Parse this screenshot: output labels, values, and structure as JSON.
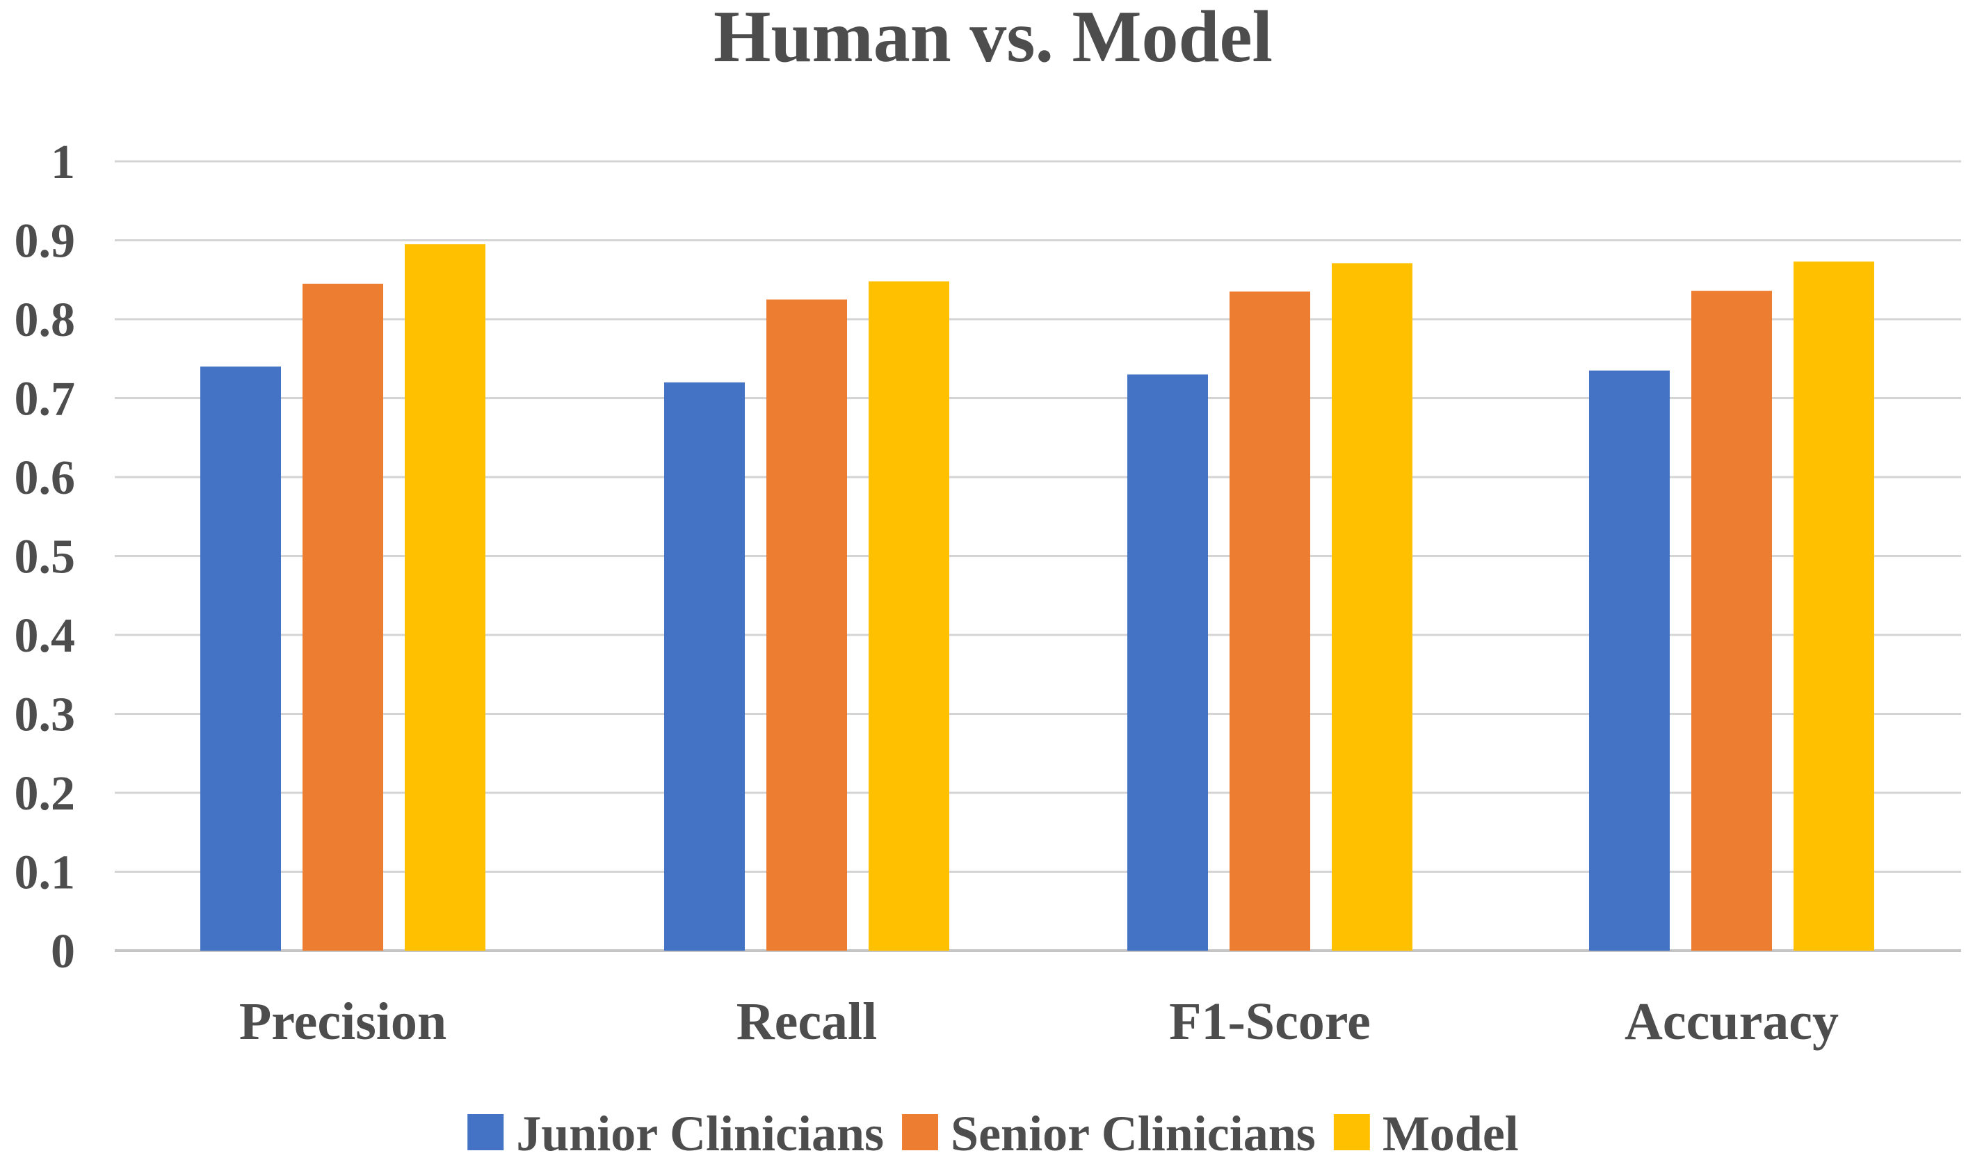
{
  "chart_data": {
    "type": "bar",
    "title": "Human vs. Model",
    "xlabel": "",
    "ylabel": "",
    "ylim": [
      0,
      1
    ],
    "yticks": [
      "0",
      "0.1",
      "0.2",
      "0.3",
      "0.4",
      "0.5",
      "0.6",
      "0.7",
      "0.8",
      "0.9",
      "1"
    ],
    "grid": true,
    "legend_position": "bottom",
    "categories": [
      "Precision",
      "Recall",
      "F1-Score",
      "Accuracy"
    ],
    "series": [
      {
        "name": "Junior Clinicians",
        "color": "#4472c4",
        "values": [
          0.74,
          0.72,
          0.73,
          0.735
        ]
      },
      {
        "name": "Senior Clinicians",
        "color": "#ed7d31",
        "values": [
          0.845,
          0.825,
          0.835,
          0.836
        ]
      },
      {
        "name": "Model",
        "color": "#ffc000",
        "values": [
          0.895,
          0.848,
          0.871,
          0.873
        ]
      }
    ]
  }
}
